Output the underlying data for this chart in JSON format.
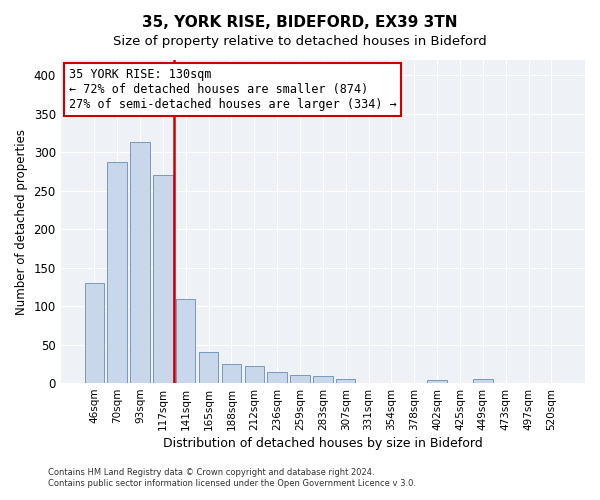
{
  "title": "35, YORK RISE, BIDEFORD, EX39 3TN",
  "subtitle": "Size of property relative to detached houses in Bideford",
  "xlabel": "Distribution of detached houses by size in Bideford",
  "ylabel": "Number of detached properties",
  "bar_labels": [
    "46sqm",
    "70sqm",
    "93sqm",
    "117sqm",
    "141sqm",
    "165sqm",
    "188sqm",
    "212sqm",
    "236sqm",
    "259sqm",
    "283sqm",
    "307sqm",
    "331sqm",
    "354sqm",
    "378sqm",
    "402sqm",
    "425sqm",
    "449sqm",
    "473sqm",
    "497sqm",
    "520sqm"
  ],
  "bar_values": [
    130,
    287,
    313,
    270,
    109,
    41,
    25,
    22,
    14,
    10,
    9,
    5,
    0,
    0,
    0,
    4,
    0,
    5,
    0,
    0,
    0
  ],
  "bar_color": "#c8d8ea",
  "bar_edge_color": "#7799bb",
  "vline_color": "#cc0000",
  "vline_index": 4,
  "annotation_title": "35 YORK RISE: 130sqm",
  "annotation_line1": "← 72% of detached houses are smaller (874)",
  "annotation_line2": "27% of semi-detached houses are larger (334) →",
  "annotation_box_color": "#ffffff",
  "annotation_box_edge": "#cc0000",
  "ylim": [
    0,
    420
  ],
  "yticks": [
    0,
    50,
    100,
    150,
    200,
    250,
    300,
    350,
    400
  ],
  "footer1": "Contains HM Land Registry data © Crown copyright and database right 2024.",
  "footer2": "Contains public sector information licensed under the Open Government Licence v 3.0.",
  "bg_color": "#ffffff",
  "plot_bg_color": "#eef2f7",
  "grid_color": "#ffffff",
  "title_fontsize": 11,
  "subtitle_fontsize": 9.5
}
